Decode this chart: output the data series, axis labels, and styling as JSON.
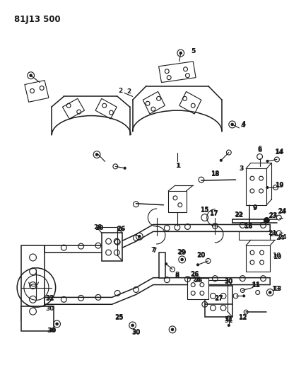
{
  "title": "81J13 500",
  "bg": "#ffffff",
  "lc": "#1a1a1a",
  "fig_w": 4.09,
  "fig_h": 5.33,
  "dpi": 100
}
